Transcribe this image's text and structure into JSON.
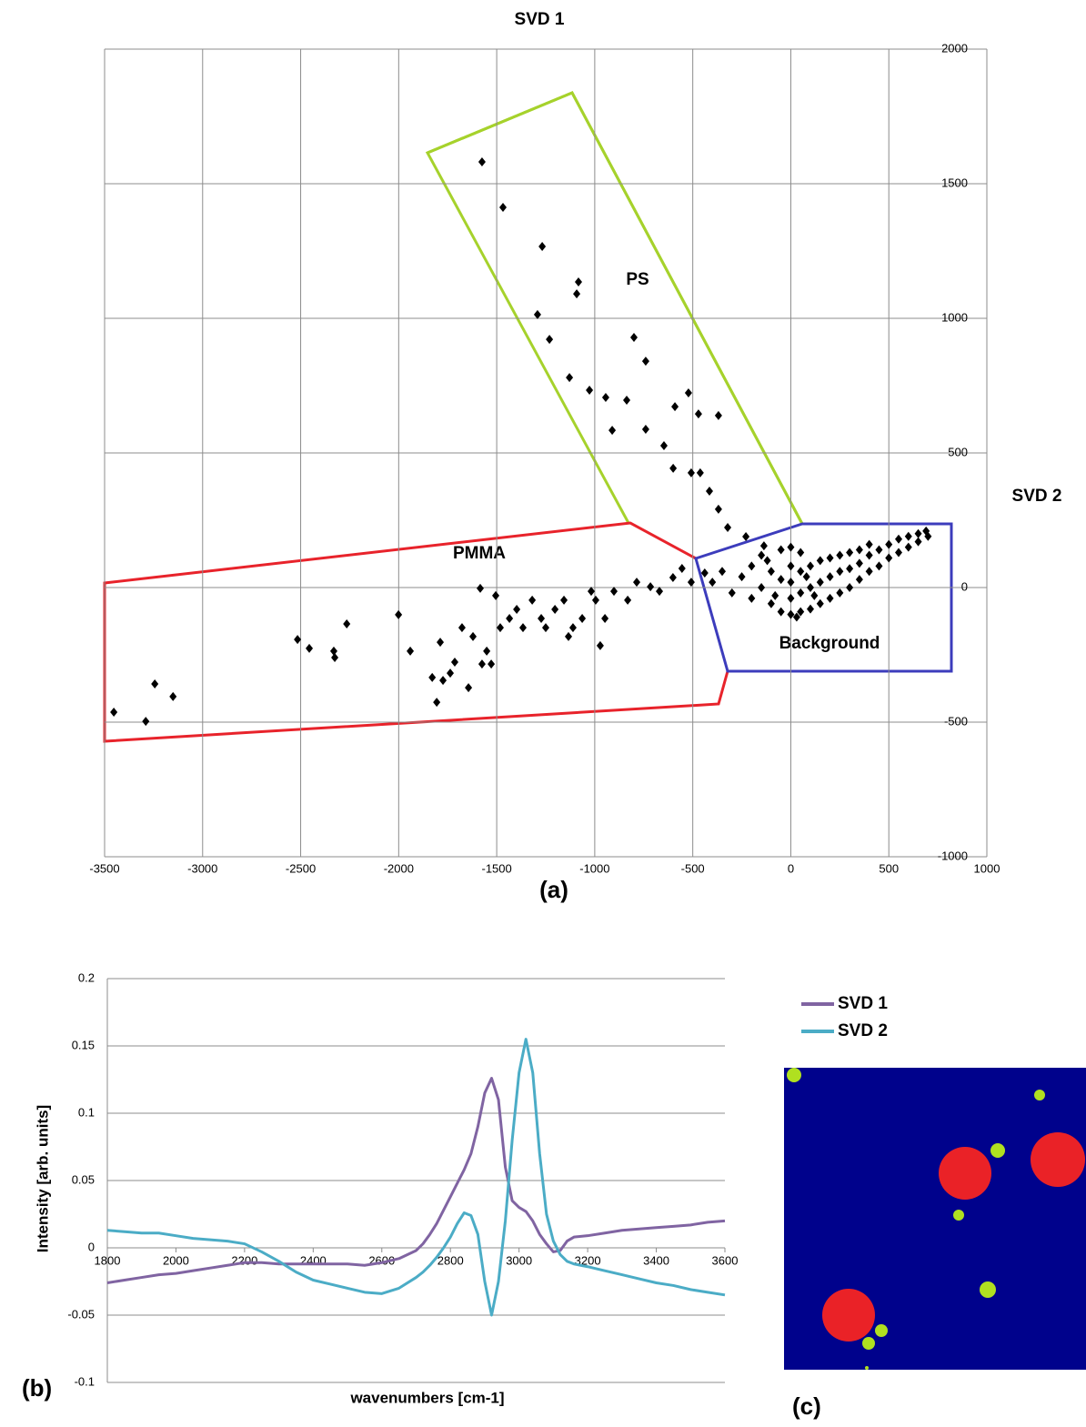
{
  "chart_data": [
    {
      "type": "scatter",
      "title": "SVD 1",
      "y_label": "SVD 2",
      "caption": "(a)",
      "annotations": [
        "PS",
        "PMMA",
        "Background"
      ],
      "color": "#000000",
      "x": [
        -1575,
        -1468,
        -1268,
        -1083,
        -1092,
        -1292,
        -1231,
        -800,
        -740,
        -1129,
        -1027,
        -944,
        -837,
        -911,
        -740,
        -522,
        -471,
        -369,
        -591,
        -647,
        -600,
        -508,
        -462,
        -415,
        -369,
        -322,
        -229,
        -137,
        -3453,
        -3290,
        -3244,
        -3151,
        -2516,
        -2456,
        -2331,
        -2326,
        -2265,
        -2001,
        -1941,
        -1829,
        -1806,
        -1788,
        -1774,
        -1737,
        -1714,
        -1677,
        -1644,
        -1621,
        -1584,
        -1575,
        -1551,
        -1528,
        -1505,
        -1482,
        -1435,
        -1398,
        -1366,
        -1319,
        -1273,
        -1250,
        -1203,
        -1157,
        -1134,
        -1111,
        -1064,
        -1018,
        -995,
        -972,
        -948,
        -902,
        -832,
        -786,
        -716,
        -670,
        -601,
        -555,
        -508,
        -439,
        -400,
        -350,
        -300,
        -250,
        -200,
        -200,
        -150,
        -150,
        -100,
        -100,
        -50,
        -50,
        -50,
        0,
        0,
        0,
        0,
        0,
        50,
        50,
        50,
        50,
        100,
        100,
        100,
        150,
        150,
        150,
        200,
        200,
        200,
        250,
        250,
        250,
        300,
        300,
        300,
        350,
        350,
        350,
        400,
        400,
        400,
        450,
        450,
        500,
        500,
        550,
        550,
        600,
        600,
        650,
        650,
        700,
        690,
        -80,
        -120,
        30,
        80,
        120
      ],
      "values": [
        1581,
        1412,
        1267,
        1135,
        1091,
        1014,
        922,
        929,
        841,
        780,
        733,
        706,
        696,
        584,
        588,
        723,
        645,
        639,
        672,
        527,
        443,
        426,
        426,
        358,
        291,
        223,
        189,
        155,
        -463,
        -497,
        -358,
        -405,
        -193,
        -226,
        -236,
        -260,
        -135,
        -101,
        -236,
        -334,
        -426,
        -203,
        -345,
        -318,
        -277,
        -149,
        -372,
        -182,
        -3,
        -284,
        -236,
        -284,
        -30,
        -149,
        -115,
        -81,
        -149,
        -47,
        -115,
        -149,
        -81,
        -47,
        -182,
        -149,
        -115,
        -14,
        -47,
        -216,
        -115,
        -14,
        -47,
        20,
        3,
        -14,
        37,
        71,
        20,
        54,
        20,
        60,
        -20,
        40,
        -40,
        80,
        0,
        120,
        -60,
        60,
        -90,
        30,
        140,
        -100,
        -40,
        20,
        80,
        150,
        -90,
        -20,
        60,
        130,
        -80,
        0,
        80,
        -60,
        20,
        100,
        -40,
        40,
        110,
        -20,
        60,
        120,
        0,
        70,
        130,
        30,
        90,
        140,
        60,
        120,
        160,
        80,
        140,
        110,
        160,
        130,
        180,
        150,
        190,
        170,
        200,
        190,
        210,
        -30,
        100,
        -110,
        40,
        -30
      ],
      "xlim": [
        -3500,
        1000
      ],
      "xticks": [
        -3500,
        -3000,
        -2500,
        -2000,
        -1500,
        -1000,
        -500,
        0,
        500,
        1000
      ],
      "ylim": [
        -1000,
        2000
      ],
      "yticks": [
        -1000,
        -500,
        0,
        500,
        1000,
        1500,
        2000
      ],
      "grid": true
    },
    {
      "type": "line",
      "caption": "(b)",
      "x_label": "wavenumbers [cm-1]",
      "y_label": "Intensity [arb. units]",
      "x": [
        1800,
        1850,
        1900,
        1950,
        2000,
        2050,
        2100,
        2150,
        2200,
        2250,
        2300,
        2350,
        2400,
        2450,
        2500,
        2550,
        2600,
        2650,
        2700,
        2720,
        2740,
        2760,
        2780,
        2800,
        2820,
        2840,
        2860,
        2880,
        2900,
        2920,
        2940,
        2960,
        2980,
        3000,
        3020,
        3040,
        3060,
        3080,
        3100,
        3120,
        3140,
        3160,
        3200,
        3250,
        3300,
        3350,
        3400,
        3450,
        3500,
        3550,
        3600
      ],
      "series": [
        {
          "name": "SVD 1",
          "color": "#8064a2",
          "values": [
            -0.026,
            -0.024,
            -0.022,
            -0.02,
            -0.019,
            -0.017,
            -0.015,
            -0.013,
            -0.011,
            -0.011,
            -0.012,
            -0.012,
            -0.012,
            -0.012,
            -0.012,
            -0.013,
            -0.011,
            -0.008,
            -0.002,
            0.003,
            0.01,
            0.018,
            0.028,
            0.038,
            0.048,
            0.058,
            0.07,
            0.09,
            0.115,
            0.126,
            0.11,
            0.06,
            0.035,
            0.03,
            0.027,
            0.02,
            0.01,
            0.003,
            -0.003,
            -0.002,
            0.005,
            0.008,
            0.009,
            0.011,
            0.013,
            0.014,
            0.015,
            0.016,
            0.017,
            0.019,
            0.02
          ]
        },
        {
          "name": "SVD 2",
          "color": "#4bacc6",
          "values": [
            0.013,
            0.012,
            0.011,
            0.011,
            0.009,
            0.007,
            0.006,
            0.005,
            0.003,
            -0.003,
            -0.01,
            -0.018,
            -0.024,
            -0.027,
            -0.03,
            -0.033,
            -0.034,
            -0.03,
            -0.022,
            -0.018,
            -0.013,
            -0.007,
            0.0,
            0.008,
            0.018,
            0.026,
            0.024,
            0.01,
            -0.025,
            -0.05,
            -0.025,
            0.02,
            0.08,
            0.13,
            0.155,
            0.13,
            0.07,
            0.025,
            0.005,
            -0.005,
            -0.01,
            -0.012,
            -0.014,
            -0.017,
            -0.02,
            -0.023,
            -0.026,
            -0.028,
            -0.031,
            -0.033,
            -0.035
          ]
        }
      ],
      "xlim": [
        1800,
        3600
      ],
      "xticks": [
        1800,
        2000,
        2200,
        2400,
        2600,
        2800,
        3000,
        3200,
        3400,
        3600
      ],
      "ylim": [
        -0.1,
        0.2
      ],
      "yticks": [
        -0.1,
        -0.05,
        0,
        0.05,
        0.1,
        0.15,
        0.2
      ],
      "grid": true
    }
  ],
  "panel_c": {
    "caption": "(c)"
  }
}
